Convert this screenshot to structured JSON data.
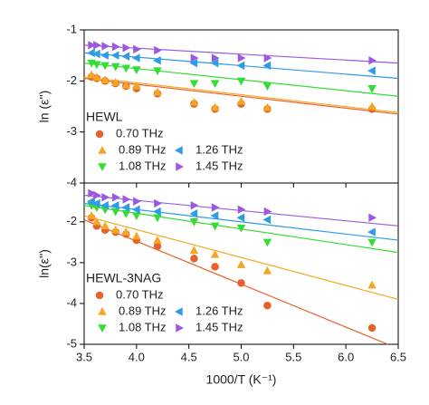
{
  "chart_data": [
    {
      "type": "scatter",
      "ylabel": "ln (ε'')",
      "legend_title": "HEWL",
      "xlim": [
        3.5,
        6.5
      ],
      "ylim": [
        -4,
        -1
      ],
      "xticks": [
        3.5,
        {
          "value": 4,
          "label": "4.0"
        },
        4.5,
        {
          "value": 5,
          "label": "5.0"
        },
        5.5,
        {
          "value": 6,
          "label": "6.0"
        },
        6.5
      ],
      "yticks": [
        -1,
        -2,
        -3,
        -4
      ],
      "show_xtick_labels": false,
      "x": [
        3.57,
        3.62,
        3.7,
        3.8,
        3.9,
        4.0,
        4.2,
        4.55,
        4.75,
        5.0,
        5.25,
        6.25
      ],
      "series": [
        {
          "name": "0.70 THz",
          "color": "#e8602c",
          "marker": "circle",
          "values": [
            -1.92,
            -1.95,
            -2.0,
            -2.05,
            -2.1,
            -2.15,
            -2.25,
            -2.45,
            -2.55,
            -2.45,
            -2.55,
            -2.55
          ],
          "fit": {
            "x": [
              3.5,
              6.5
            ],
            "y": [
              -1.95,
              -2.65
            ]
          }
        },
        {
          "name": "0.89 THz",
          "color": "#f5a623",
          "marker": "triangle-up",
          "values": [
            -1.88,
            -1.93,
            -1.98,
            -2.03,
            -2.08,
            -2.1,
            -2.22,
            -2.42,
            -2.52,
            -2.4,
            -2.52,
            -2.5
          ],
          "fit": {
            "x": [
              3.5,
              6.5
            ],
            "y": [
              -1.92,
              -2.62
            ]
          }
        },
        {
          "name": "1.08 THz",
          "color": "#33dd33",
          "marker": "triangle-down",
          "values": [
            -1.65,
            -1.68,
            -1.7,
            -1.72,
            -1.75,
            -1.78,
            -1.8,
            -2.05,
            -2.05,
            -2.0,
            -2.1,
            -2.15
          ],
          "fit": {
            "x": [
              3.5,
              6.5
            ],
            "y": [
              -1.65,
              -2.3
            ]
          }
        },
        {
          "name": "1.26 THz",
          "color": "#2e9be8",
          "marker": "triangle-left",
          "values": [
            -1.45,
            -1.47,
            -1.5,
            -1.5,
            -1.52,
            -1.55,
            -1.6,
            -1.65,
            -1.65,
            -1.7,
            -1.7,
            -1.8
          ],
          "fit": {
            "x": [
              3.5,
              6.5
            ],
            "y": [
              -1.45,
              -1.95
            ]
          }
        },
        {
          "name": "1.45 THz",
          "color": "#9b59e0",
          "marker": "triangle-right",
          "values": [
            -1.3,
            -1.3,
            -1.32,
            -1.33,
            -1.35,
            -1.38,
            -1.4,
            -1.55,
            -1.55,
            -1.55,
            -1.55,
            -1.6
          ],
          "fit": {
            "x": [
              3.5,
              6.5
            ],
            "y": [
              -1.3,
              -1.65
            ]
          }
        }
      ]
    },
    {
      "type": "scatter",
      "ylabel": "ln(ε'')",
      "xlabel": "1000/T (K⁻¹)",
      "legend_title": "HEWL-3NAG",
      "xlim": [
        3.5,
        6.5
      ],
      "ylim": [
        -5,
        -1.05
      ],
      "xticks": [
        3.5,
        {
          "value": 4,
          "label": "4.0"
        },
        4.5,
        {
          "value": 5,
          "label": "5.0"
        },
        5.5,
        {
          "value": 6,
          "label": "6.0"
        },
        6.5
      ],
      "yticks": [
        -2,
        -3,
        -4,
        -5
      ],
      "show_xtick_labels": true,
      "x": [
        3.57,
        3.62,
        3.7,
        3.8,
        3.9,
        4.0,
        4.2,
        4.55,
        4.75,
        5.0,
        5.25,
        6.25
      ],
      "series": [
        {
          "name": "0.70 THz",
          "color": "#e8602c",
          "marker": "circle",
          "values": [
            -1.9,
            -2.1,
            -2.2,
            -2.25,
            -2.3,
            -2.45,
            -2.6,
            -2.9,
            -3.1,
            -3.5,
            -4.05,
            -4.6
          ],
          "fit": {
            "x": [
              3.5,
              6.4
            ],
            "y": [
              -1.95,
              -5.0
            ]
          }
        },
        {
          "name": "0.89 THz",
          "color": "#f5a623",
          "marker": "triangle-up",
          "values": [
            -1.85,
            -2.0,
            -2.1,
            -2.2,
            -2.25,
            -2.35,
            -2.45,
            -2.7,
            -2.8,
            -3.05,
            -3.2,
            -3.55
          ],
          "fit": {
            "x": [
              3.5,
              6.5
            ],
            "y": [
              -1.85,
              -3.9
            ]
          }
        },
        {
          "name": "1.08 THz",
          "color": "#33dd33",
          "marker": "triangle-down",
          "values": [
            -1.6,
            -1.65,
            -1.7,
            -1.75,
            -1.8,
            -1.85,
            -1.9,
            -2.0,
            -2.1,
            -2.15,
            -2.5,
            -2.5
          ],
          "fit": {
            "x": [
              3.5,
              6.5
            ],
            "y": [
              -1.6,
              -2.75
            ]
          }
        },
        {
          "name": "1.26 THz",
          "color": "#2e9be8",
          "marker": "triangle-left",
          "values": [
            -1.5,
            -1.55,
            -1.6,
            -1.6,
            -1.65,
            -1.7,
            -1.75,
            -1.8,
            -1.85,
            -1.9,
            -1.95,
            -2.25
          ],
          "fit": {
            "x": [
              3.5,
              6.5
            ],
            "y": [
              -1.55,
              -2.45
            ]
          }
        },
        {
          "name": "1.45 THz",
          "color": "#9b59e0",
          "marker": "triangle-right",
          "values": [
            -1.3,
            -1.35,
            -1.4,
            -1.4,
            -1.45,
            -1.5,
            -1.55,
            -1.6,
            -1.65,
            -1.7,
            -1.75,
            -1.9
          ],
          "fit": {
            "x": [
              3.5,
              6.5
            ],
            "y": [
              -1.35,
              -2.1
            ]
          }
        }
      ]
    }
  ]
}
